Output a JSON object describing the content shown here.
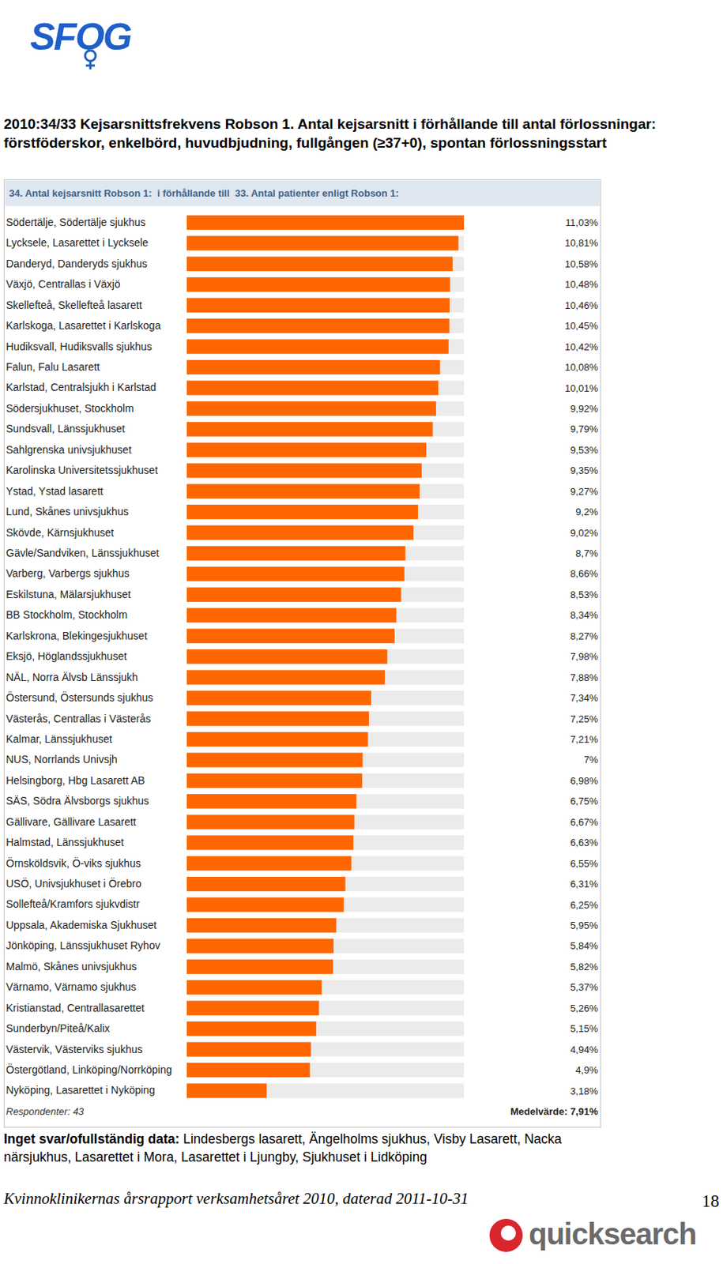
{
  "document": {
    "logo": "SFOG",
    "heading": "2010:34/33 Kejsarsnittsfrekvens Robson 1. Antal kejsarsnitt i förhållande till antal förlossningar: förstföderskor, enkelbörd, huvudbjudning, fullgången (≥37+0), spontan förlossningsstart",
    "no_data_label": "Inget svar/ofullständig data:",
    "no_data_list": "Lindesbergs lasarett, Ängelholms sjukhus, Visby Lasarett, Nacka närsjukhus, Lasarettet i Mora, Lasarettet i Ljungby, Sjukhuset i Lidköping",
    "footer": "Kvinnoklinikernas årsrapport verksamhetsåret 2010, daterad 2011-10-31",
    "page_number": 18,
    "brand": "quicksearch"
  },
  "chart_data": {
    "type": "bar",
    "orientation": "horizontal",
    "title": "34. Antal kejsarsnitt Robson 1:  i förhållande till  33. Antal patienter enligt Robson 1:",
    "categories": [
      "Södertälje, Södertälje sjukhus",
      "Lycksele, Lasarettet i Lycksele",
      "Danderyd, Danderyds sjukhus",
      "Växjö, Centrallas i Växjö",
      "Skellefteå, Skellefteå lasarett",
      "Karlskoga, Lasarettet i Karlskoga",
      "Hudiksvall, Hudiksvalls sjukhus",
      "Falun, Falu Lasarett",
      "Karlstad, Centralsjukh i Karlstad",
      "Södersjukhuset, Stockholm",
      "Sundsvall, Länssjukhuset",
      "Sahlgrenska univsjukhuset",
      "Karolinska Universitetssjukhuset",
      "Ystad, Ystad lasarett",
      "Lund, Skånes univsjukhus",
      "Skövde, Kärnsjukhuset",
      "Gävle/Sandviken, Länssjukhuset",
      "Varberg, Varbergs sjukhus",
      "Eskilstuna, Mälarsjukhuset",
      "BB Stockholm, Stockholm",
      "Karlskrona, Blekingesjukhuset",
      "Eksjö, Höglandssjukhuset",
      "NÄL, Norra Älvsb Länssjukh",
      "Östersund, Östersunds sjukhus",
      "Västerås, Centrallas i Västerås",
      "Kalmar, Länssjukhuset",
      "NUS, Norrlands Univsjh",
      "Helsingborg, Hbg Lasarett AB",
      "SÄS, Södra Älvsborgs sjukhus",
      "Gällivare, Gällivare Lasarett",
      "Halmstad, Länssjukhuset",
      "Örnsköldsvik, Ö-viks sjukhus",
      "USÖ, Univsjukhuset i Örebro",
      "Sollefteå/Kramfors sjukvdistr",
      "Uppsala, Akademiska Sjukhuset",
      "Jönköping, Länssjukhuset Ryhov",
      "Malmö, Skånes univsjukhus",
      "Värnamo, Värnamo sjukhus",
      "Kristianstad, Centrallasarettet",
      "Sunderbyn/Piteå/Kalix",
      "Västervik, Västerviks sjukhus",
      "Östergötland, Linköping/Norrköping",
      "Nyköping, Lasarettet i Nyköping"
    ],
    "values": [
      11.03,
      10.81,
      10.58,
      10.48,
      10.46,
      10.45,
      10.42,
      10.08,
      10.01,
      9.92,
      9.79,
      9.53,
      9.35,
      9.27,
      9.2,
      9.02,
      8.7,
      8.66,
      8.53,
      8.34,
      8.27,
      7.98,
      7.88,
      7.34,
      7.25,
      7.21,
      7,
      6.98,
      6.75,
      6.67,
      6.63,
      6.55,
      6.31,
      6.25,
      5.95,
      5.84,
      5.82,
      5.37,
      5.26,
      5.15,
      4.94,
      4.9,
      3.18
    ],
    "value_labels": [
      "11,03%",
      "10,81%",
      "10,58%",
      "10,48%",
      "10,46%",
      "10,45%",
      "10,42%",
      "10,08%",
      "10,01%",
      "9,92%",
      "9,79%",
      "9,53%",
      "9,35%",
      "9,27%",
      "9,2%",
      "9,02%",
      "8,7%",
      "8,66%",
      "8,53%",
      "8,34%",
      "8,27%",
      "7,98%",
      "7,88%",
      "7,34%",
      "7,25%",
      "7,21%",
      "7%",
      "6,98%",
      "6,75%",
      "6,67%",
      "6,63%",
      "6,55%",
      "6,31%",
      "6,25%",
      "5,95%",
      "5,84%",
      "5,82%",
      "5,37%",
      "5,26%",
      "5,15%",
      "4,94%",
      "4,9%",
      "3,18%"
    ],
    "color": "#ff6600",
    "data_labels": true,
    "tick_labels": "y",
    "respondents": "Respondenter: 43",
    "mean_label": "Medelvärde: 7,91%"
  }
}
